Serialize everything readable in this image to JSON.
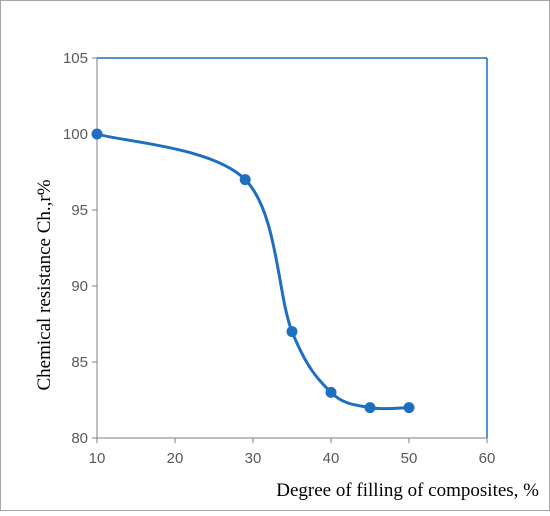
{
  "chart_data": {
    "type": "line",
    "title": "",
    "xlabel": "Degree of filling of composites, %",
    "ylabel": "Chemical resistance Ch.,r%",
    "xlim": [
      10,
      60
    ],
    "ylim": [
      80,
      105
    ],
    "xticks": [
      10,
      20,
      30,
      40,
      50,
      60
    ],
    "yticks": [
      80,
      85,
      90,
      95,
      100,
      105
    ],
    "xtick_labels": [
      "10",
      "20",
      "30",
      "40",
      "50",
      "60"
    ],
    "ytick_labels": [
      "80",
      "85",
      "90",
      "95",
      "100",
      "105"
    ],
    "grid": false,
    "legend": "none",
    "smooth": true,
    "series": [
      {
        "x": [
          10,
          29,
          35,
          40,
          45,
          50
        ],
        "y": [
          100,
          97,
          87,
          83,
          82,
          82
        ],
        "color": "#1f6fc1"
      }
    ]
  },
  "colors": {
    "series": "#1f6fc1",
    "frame": "#1f6fc1",
    "axis": "#7f7f7f",
    "border": "#a6a6a6"
  }
}
